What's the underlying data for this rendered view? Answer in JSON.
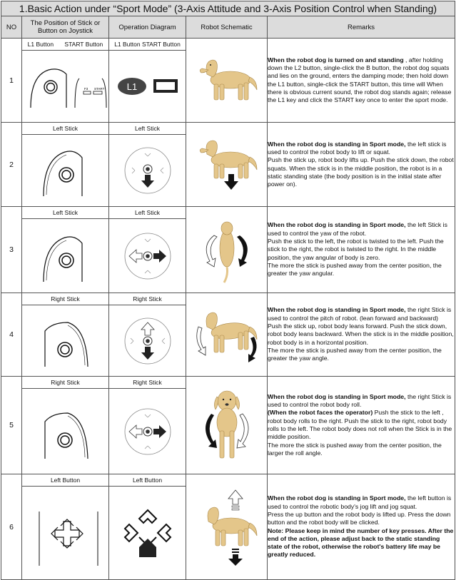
{
  "title": "1.Basic Action under “Sport Mode” (3-Axis Attitude and 3-Axis Position Control when Standing)",
  "headers": {
    "no": "NO",
    "position": "The Position of Stick or Button on Joystick",
    "diagram": "Operation Diagram",
    "schematic": "Robot Schematic",
    "remarks": "Remarks"
  },
  "rows": [
    {
      "no": "1",
      "pos_label_a": "L1 Button",
      "pos_label_b": "START Button",
      "diag_label": "L1 Button START Button",
      "mini_label_a": "F3",
      "mini_label_b": "START",
      "l1_text": "L1",
      "remarks": [
        {
          "b": "When the robot dog is turned on and standing",
          "t": " , after holding down the L2 button, single-click the B button, the robot dog squats and lies on the ground, enters the damping mode; then hold down the L1 button, single-click the START button, this time will When there is obvious current sound, the robot dog stands again; release the L1 key and click the START key once to enter the sport mode."
        }
      ]
    },
    {
      "no": "2",
      "pos_label": "Left Stick",
      "diag_label": "Left Stick",
      "remarks": [
        {
          "b": "When the robot dog is standing in Sport mode,",
          "t": " the left stick is used to control the robot body to lift or squat."
        },
        {
          "b": "",
          "t": "Push the stick up, robot body lifts up. Push the stick down, the robot squats. When the stick is in the middle position, the robot is in a static standing state (the body position is in the initial state after power on)."
        }
      ]
    },
    {
      "no": "3",
      "pos_label": "Left Stick",
      "diag_label": "Left Stick",
      "remarks": [
        {
          "b": "When the robot dog is standing in Sport mode,",
          "t": " the left Stick is used to control the yaw of the robot."
        },
        {
          "b": "",
          "t": "Push the stick to the left, the robot is twisted to the left. Push the stick to the right, the robot is twisted to the right. In the middle position, the yaw angular of body is zero."
        },
        {
          "b": "",
          "t": "The more the stick is pushed away from the center position, the greater the yaw angular."
        }
      ]
    },
    {
      "no": "4",
      "pos_label": "Right Stick",
      "diag_label": "Right Stick",
      "remarks": [
        {
          "b": "When the robot dog is standing in Sport mode,",
          "t": " the right Stick is used to control the pitch of robot. (lean forward and backward)"
        },
        {
          "b": "",
          "t": "Push the stick up, robot body leans forward. Push the stick down, robot body leans backward. When the stick is in the middle position, robot body is in a horizontal position."
        },
        {
          "b": "",
          "t": "The more the stick is pushed away from the center position, the greater the yaw angle."
        }
      ]
    },
    {
      "no": "5",
      "pos_label": "Right Stick",
      "diag_label": "Right Stick",
      "remarks": [
        {
          "b": "When the robot dog is standing in Sport mode,",
          "t": " the right Stick is used to control the robot body roll."
        },
        {
          "b": "(When the robot faces the operator)",
          "t": " Push the stick to the left , robot body rolls to the right. Push the stick to the right, robot body rolls to the left. The robot body does not roll when the Stick is in the middle position."
        },
        {
          "b": "",
          "t": "The more the stick is pushed away from the center position, the larger the roll angle."
        }
      ]
    },
    {
      "no": "6",
      "pos_label": "Left Button",
      "diag_label": "Left Button",
      "remarks": [
        {
          "b": "When the robot dog is standing in Sport mode,",
          "t": " the left button is used to control the robotic body's jog lift and jog squat."
        },
        {
          "b": "",
          "t": "Press the up button and the robot body is lifted up. Press the down button and the robot body will be clicked."
        },
        {
          "b": "Note: Please keep in mind the number of key presses. After the end of the action, please adjust back to the static standing state of the robot, otherwise the robot's battery life may be greatly reduced.",
          "t": ""
        }
      ]
    }
  ],
  "colors": {
    "header_bg": "#dcdcdc",
    "border": "#555555",
    "dog": "#e4c68a",
    "arrow": "#111111"
  }
}
